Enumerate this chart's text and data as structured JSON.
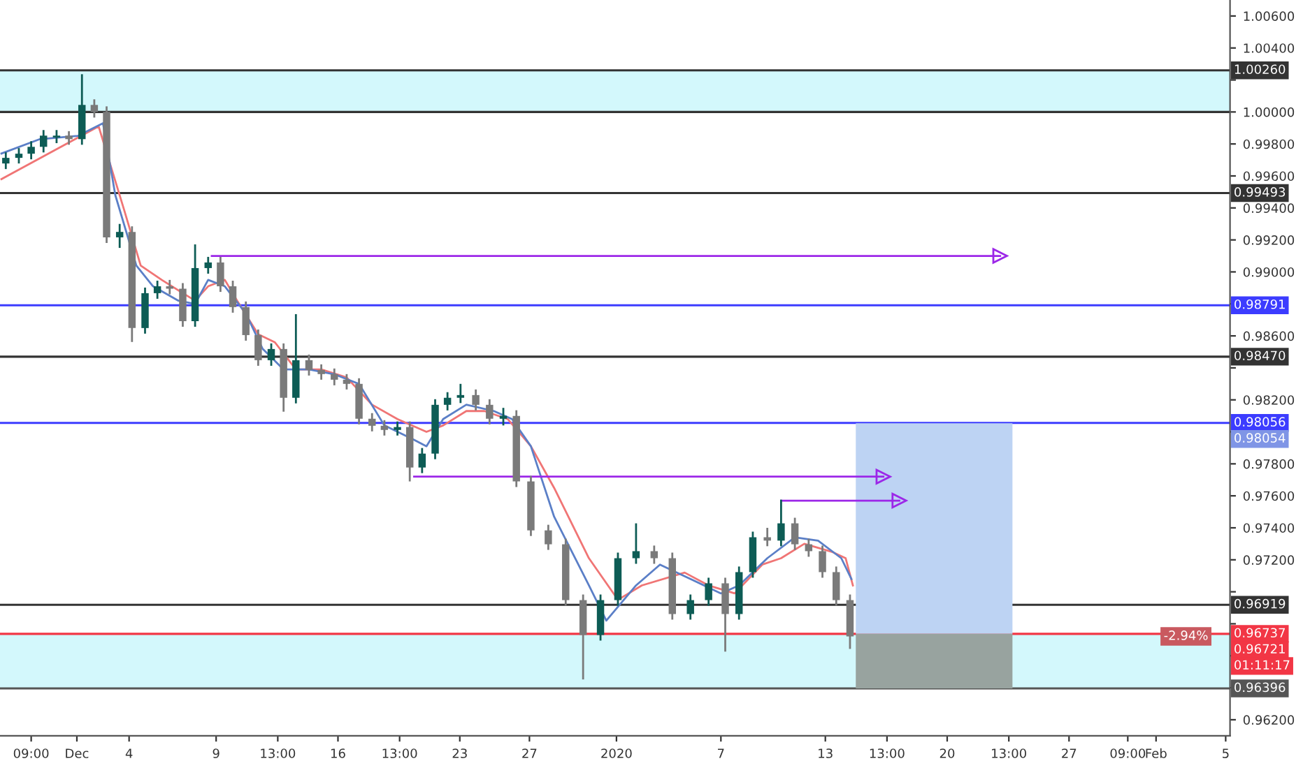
{
  "chart_data": {
    "type": "candlestick",
    "x": [
      "2019-11-26T22:00",
      "2019-11-27T16:00",
      "2019-11-28T09:00",
      "2019-11-29T02:00",
      "2019-11-29T20:00",
      "2019-11-30T13:00",
      "2019-12-01T07:00",
      "2019-12-02T00:00",
      "2019-12-02T17:00",
      "2019-12-03T11:00",
      "2019-12-04T04:00",
      "2019-12-04T22:00",
      "2019-12-05T15:00",
      "2019-12-06T08:00",
      "2019-12-07T02:00",
      "2019-12-07T19:00",
      "2019-12-08T13:00",
      "2019-12-09T06:00",
      "2019-12-09T23:00",
      "2019-12-10T17:00",
      "2019-12-11T10:00",
      "2019-12-12T04:00",
      "2019-12-12T21:00",
      "2019-12-13T14:00",
      "2019-12-14T08:00",
      "2019-12-15T01:00",
      "2019-12-15T19:00",
      "2019-12-16T12:00",
      "2019-12-17T05:00",
      "2019-12-17T23:00",
      "2019-12-18T16:00",
      "2019-12-19T10:00",
      "2019-12-20T03:00",
      "2019-12-20T20:00",
      "2019-12-21T14:00",
      "2019-12-22T07:00",
      "2019-12-23T01:00",
      "2019-12-23T22:00",
      "2019-12-24T17:00",
      "2019-12-25T12:00",
      "2019-12-26T06:00",
      "2019-12-27T02:00",
      "2019-12-28T02:00",
      "2019-12-29T02:00",
      "2019-12-30T02:00",
      "2019-12-31T02:00",
      "2020-01-01T02:00",
      "2020-01-02T03:00",
      "2020-01-03T04:00",
      "2020-01-04T05:00",
      "2020-01-05T06:00",
      "2020-01-06T07:00",
      "2020-01-07T06:00",
      "2020-01-08T01:00",
      "2020-01-08T20:00",
      "2020-01-09T16:00",
      "2020-01-10T11:00",
      "2020-01-11T06:00",
      "2020-01-12T01:00",
      "2020-01-12T20:00",
      "2020-01-13T15:00",
      "2020-01-14T10:00"
    ],
    "ohlc": [
      [
        0.99678,
        0.99748,
        0.99643,
        0.99713
      ],
      [
        0.99713,
        0.99774,
        0.99678,
        0.99739
      ],
      [
        0.99739,
        0.99817,
        0.99704,
        0.99782
      ],
      [
        0.99782,
        0.99887,
        0.99747,
        0.99852
      ],
      [
        0.9984,
        0.99887,
        0.99805,
        0.99852
      ],
      [
        0.99852,
        0.9988,
        0.99795,
        0.9983
      ],
      [
        0.9983,
        1.00236,
        0.99795,
        1.00044
      ],
      [
        1.00044,
        1.00079,
        0.99965,
        1.0
      ],
      [
        1.0,
        1.00035,
        0.99181,
        0.99216
      ],
      [
        0.99216,
        0.993,
        0.9915,
        0.9925
      ],
      [
        0.9925,
        0.99285,
        0.98562,
        0.98649
      ],
      [
        0.98649,
        0.98902,
        0.98614,
        0.98867
      ],
      [
        0.98867,
        0.98945,
        0.98832,
        0.9891
      ],
      [
        0.9891,
        0.9895,
        0.9886,
        0.98895
      ],
      [
        0.98895,
        0.9893,
        0.98657,
        0.98692
      ],
      [
        0.98692,
        0.99172,
        0.98657,
        0.99024
      ],
      [
        0.99024,
        0.99094,
        0.98989,
        0.99059
      ],
      [
        0.99059,
        0.99094,
        0.98875,
        0.9891
      ],
      [
        0.9891,
        0.98945,
        0.98745,
        0.9878
      ],
      [
        0.9878,
        0.98815,
        0.9857,
        0.98605
      ],
      [
        0.98605,
        0.9864,
        0.98413,
        0.98448
      ],
      [
        0.98448,
        0.98553,
        0.98413,
        0.98518
      ],
      [
        0.98518,
        0.98553,
        0.98126,
        0.98213
      ],
      [
        0.98213,
        0.98736,
        0.98178,
        0.98448
      ],
      [
        0.98448,
        0.98483,
        0.98352,
        0.98387
      ],
      [
        0.98387,
        0.98422,
        0.98326,
        0.98361
      ],
      [
        0.98361,
        0.98396,
        0.98291,
        0.98326
      ],
      [
        0.98326,
        0.98361,
        0.98265,
        0.983
      ],
      [
        0.983,
        0.98335,
        0.98047,
        0.98082
      ],
      [
        0.98082,
        0.98117,
        0.98003,
        0.98038
      ],
      [
        0.98038,
        0.98073,
        0.97977,
        0.98012
      ],
      [
        0.98012,
        0.98065,
        0.97977,
        0.9803
      ],
      [
        0.9803,
        0.98065,
        0.9769,
        0.97777
      ],
      [
        0.97777,
        0.97899,
        0.97742,
        0.97864
      ],
      [
        0.97864,
        0.98204,
        0.97829,
        0.98169
      ],
      [
        0.98169,
        0.98248,
        0.98134,
        0.98213
      ],
      [
        0.98213,
        0.983,
        0.9818,
        0.9823
      ],
      [
        0.9823,
        0.98265,
        0.98134,
        0.98169
      ],
      [
        0.98169,
        0.98204,
        0.98047,
        0.98082
      ],
      [
        0.98082,
        0.9815,
        0.9804,
        0.981
      ],
      [
        0.981,
        0.98135,
        0.97655,
        0.9769
      ],
      [
        0.9769,
        0.97725,
        0.97349,
        0.97384
      ],
      [
        0.97384,
        0.97419,
        0.97262,
        0.97297
      ],
      [
        0.97297,
        0.97332,
        0.96913,
        0.96948
      ],
      [
        0.96948,
        0.96983,
        0.96452,
        0.9673
      ],
      [
        0.9673,
        0.96983,
        0.96695,
        0.96948
      ],
      [
        0.96948,
        0.97245,
        0.96913,
        0.9721
      ],
      [
        0.9721,
        0.97428,
        0.97175,
        0.97254
      ],
      [
        0.97254,
        0.97289,
        0.97175,
        0.9721
      ],
      [
        0.9721,
        0.97245,
        0.96826,
        0.96861
      ],
      [
        0.96861,
        0.96983,
        0.96826,
        0.96948
      ],
      [
        0.96948,
        0.97088,
        0.96913,
        0.97053
      ],
      [
        0.97053,
        0.97088,
        0.96626,
        0.96861
      ],
      [
        0.96861,
        0.97158,
        0.96826,
        0.97123
      ],
      [
        0.97123,
        0.97376,
        0.97088,
        0.97341
      ],
      [
        0.97341,
        0.974,
        0.97285,
        0.9732
      ],
      [
        0.9732,
        0.97576,
        0.97285,
        0.97428
      ],
      [
        0.97428,
        0.97463,
        0.97262,
        0.97297
      ],
      [
        0.97297,
        0.97332,
        0.97219,
        0.97254
      ],
      [
        0.97254,
        0.97289,
        0.97088,
        0.97123
      ],
      [
        0.97123,
        0.97158,
        0.96913,
        0.96948
      ],
      [
        0.96948,
        0.96983,
        0.96643,
        0.96721
      ]
    ],
    "colors": [
      "#0d5c55",
      "#0d5c55",
      "#0d5c55",
      "#0d5c55",
      "#0d5c55",
      "#7a7a7a",
      "#0d5c55",
      "#7a7a7a",
      "#7a7a7a",
      "#0d5c55",
      "#7a7a7a",
      "#0d5c55",
      "#0d5c55",
      "#7a7a7a",
      "#7a7a7a",
      "#0d5c55",
      "#0d5c55",
      "#7a7a7a",
      "#7a7a7a",
      "#7a7a7a",
      "#7a7a7a",
      "#0d5c55",
      "#7a7a7a",
      "#0d5c55",
      "#7a7a7a",
      "#7a7a7a",
      "#7a7a7a",
      "#7a7a7a",
      "#7a7a7a",
      "#7a7a7a",
      "#7a7a7a",
      "#0d5c55",
      "#7a7a7a",
      "#0d5c55",
      "#0d5c55",
      "#0d5c55",
      "#0d5c55",
      "#7a7a7a",
      "#7a7a7a",
      "#0d5c55",
      "#7a7a7a",
      "#7a7a7a",
      "#7a7a7a",
      "#7a7a7a",
      "#7a7a7a",
      "#0d5c55",
      "#0d5c55",
      "#0d5c55",
      "#7a7a7a",
      "#7a7a7a",
      "#0d5c55",
      "#0d5c55",
      "#7a7a7a",
      "#0d5c55",
      "#0d5c55",
      "#7a7a7a",
      "#0d5c55",
      "#7a7a7a",
      "#7a7a7a",
      "#7a7a7a",
      "#7a7a7a",
      "#7a7a7a"
    ],
    "series": [
      {
        "type": "line",
        "color": "#f07575",
        "x": [
          "2019-11-26T16:00",
          "2019-12-02T06:00",
          "2019-12-03T17:00",
          "2019-12-04T16:00",
          "2019-12-05T21:00",
          "2019-12-07T19:00",
          "2019-12-08T13:00",
          "2019-12-09T12:00",
          "2019-12-10T05:00",
          "2019-12-11T10:00",
          "2019-12-12T09:00",
          "2019-12-13T14:00",
          "2019-12-15T01:00",
          "2019-12-16T12:00",
          "2019-12-17T23:00",
          "2019-12-19T10:00",
          "2019-12-21T02:00",
          "2019-12-22T01:00",
          "2019-12-23T09:00",
          "2019-12-24T10:00",
          "2019-12-25T18:00",
          "2019-12-27T02:00",
          "2019-12-28T10:00",
          "2019-12-30T10:00",
          "2020-01-01T02:00",
          "2020-01-02T11:00",
          "2020-01-04T22:00",
          "2020-01-06T07:00",
          "2020-01-07T19:00",
          "2020-01-09T09:00",
          "2020-01-10T11:00",
          "2020-01-11T19:00",
          "2020-01-13T09:00",
          "2020-01-14T04:00",
          "2020-01-14T14:00"
        ],
        "values": [
          0.9958,
          0.9991,
          0.9939,
          0.9904,
          0.9895,
          0.9882,
          0.9891,
          0.9895,
          0.9882,
          0.9861,
          0.9856,
          0.9839,
          0.9839,
          0.9834,
          0.9817,
          0.9808,
          0.98,
          0.9804,
          0.9813,
          0.9813,
          0.9808,
          0.9791,
          0.9765,
          0.9721,
          0.9695,
          0.9704,
          0.9712,
          0.9704,
          0.9699,
          0.9717,
          0.9721,
          0.973,
          0.9725,
          0.9721,
          0.9704
        ]
      },
      {
        "type": "line",
        "color": "#5b7fc7",
        "x": [
          "2019-11-26T16:00",
          "2019-11-28T21:00",
          "2019-12-01T01:00",
          "2019-12-02T12:00",
          "2019-12-03T05:00",
          "2019-12-04T10:00",
          "2019-12-05T09:00",
          "2019-12-06T20:00",
          "2019-12-07T19:00",
          "2019-12-08T13:00",
          "2019-12-09T12:00",
          "2019-12-10T17:00",
          "2019-12-11T16:00",
          "2019-12-12T21:00",
          "2019-12-14T08:00",
          "2019-12-15T19:00",
          "2019-12-17T05:00",
          "2019-12-18T16:00",
          "2019-12-20T09:00",
          "2019-12-21T02:00",
          "2019-12-22T01:00",
          "2019-12-23T09:00",
          "2019-12-24T23:00",
          "2019-12-26T00:00",
          "2019-12-27T02:00",
          "2019-12-28T10:00",
          "2019-12-30T10:00",
          "2019-12-31T10:00",
          "2020-01-02T03:00",
          "2020-01-03T12:00",
          "2020-01-05T06:00",
          "2020-01-07T00:00",
          "2020-01-08T01:00",
          "2020-01-09T16:00",
          "2020-01-11T06:00",
          "2020-01-12T14:00",
          "2020-01-13T22:00",
          "2020-01-14T12:00"
        ],
        "values": [
          0.9974,
          0.9983,
          0.9985,
          0.9993,
          0.9948,
          0.9904,
          0.9891,
          0.9882,
          0.988,
          0.9895,
          0.9891,
          0.9874,
          0.9852,
          0.9839,
          0.9839,
          0.9836,
          0.983,
          0.9804,
          0.9795,
          0.9791,
          0.9808,
          0.9817,
          0.9813,
          0.9808,
          0.9791,
          0.9747,
          0.9704,
          0.9682,
          0.9704,
          0.9717,
          0.9708,
          0.9699,
          0.9704,
          0.9721,
          0.9734,
          0.9732,
          0.9721,
          0.9708
        ]
      },
      {
        "type": "line",
        "color": "#9c27e8",
        "marker": "triangle",
        "x": [
          "2019-12-08T18:00",
          "2020-01-23T01:00"
        ],
        "values": [
          0.991,
          0.991
        ]
      },
      {
        "type": "line",
        "color": "#9c27e8",
        "marker": "triangle",
        "x": [
          "2019-12-20T09:00",
          "2020-01-16T08:00"
        ],
        "values": [
          0.9772,
          0.9772
        ]
      },
      {
        "type": "line",
        "color": "#9c27e8",
        "marker": "triangle",
        "x": [
          "2020-01-10T11:00",
          "2020-01-17T06:00"
        ],
        "values": [
          0.9757,
          0.9757
        ]
      },
      {
        "type": "area",
        "color": "#bdd3f3",
        "x": [
          "2020-01-14T18:00",
          "2020-01-14T18:00",
          "2020-01-23T18:00",
          "2020-01-23T18:00"
        ],
        "values": [
          0.96737,
          0.98054,
          0.98054,
          0.96737
        ]
      },
      {
        "type": "area",
        "color": "#98a39f",
        "x": [
          "2020-01-14T18:00",
          "2020-01-14T18:00",
          "2020-01-23T18:00",
          "2020-01-23T18:00"
        ],
        "values": [
          0.96396,
          0.96737,
          0.96737,
          0.96396
        ]
      }
    ],
    "bands": [
      {
        "axis": "y",
        "from": 1.0,
        "to": 1.0026,
        "color": "#d3f8fc"
      },
      {
        "axis": "y",
        "from": 0.96396,
        "to": 0.96737,
        "color": "#d3f8fc"
      }
    ],
    "ref_lines": [
      {
        "axis": "y",
        "value": 1.0026,
        "label": "1.00260",
        "color": "#333333"
      },
      {
        "axis": "y",
        "value": 1.0,
        "label": null,
        "color": "#333333"
      },
      {
        "axis": "y",
        "value": 0.99493,
        "label": "0.99493",
        "color": "#333333"
      },
      {
        "axis": "y",
        "value": 0.98791,
        "label": "0.98791",
        "color": "#3c3cff"
      },
      {
        "axis": "y",
        "value": 0.9847,
        "label": "0.98470",
        "color": "#333333"
      },
      {
        "axis": "y",
        "value": 0.98056,
        "label": "0.98056",
        "color": "#3c3cff"
      },
      {
        "axis": "y",
        "value": 0.96919,
        "label": "0.96919",
        "color": "#333333"
      },
      {
        "axis": "y",
        "value": 0.96737,
        "label": "0.96737",
        "color": "#f23645"
      },
      {
        "axis": "y",
        "value": 0.96396,
        "label": "0.96396",
        "color": "#555555"
      }
    ],
    "annotations": [
      {
        "text": "0.98054",
        "y": 0.98054
      },
      {
        "text": "0.96721",
        "y": 0.96721
      },
      {
        "text": "-2.94%",
        "x": "2020-02-04T00:00",
        "y": 0.96721
      },
      "01:11:17"
    ],
    "xlim": [
      "2019-11-26T14:00",
      "2020-02-05T06:00"
    ],
    "ylim": [
      0.961,
      1.007
    ],
    "xticks": [
      {
        "value": "2019-11-28T09:00",
        "label": "09:00"
      },
      {
        "value": "2019-12-01",
        "label": "Dec"
      },
      {
        "value": "2019-12-04",
        "label": "4"
      },
      {
        "value": "2019-12-09",
        "label": "9"
      },
      {
        "value": "2019-12-12T13:00",
        "label": "13:00"
      },
      {
        "value": "2019-12-16",
        "label": "16"
      },
      {
        "value": "2019-12-19T13:00",
        "label": "13:00"
      },
      {
        "value": "2019-12-23",
        "label": "23"
      },
      {
        "value": "2019-12-27",
        "label": "27"
      },
      {
        "value": "2020-01-01",
        "label": "2020"
      },
      {
        "value": "2020-01-07",
        "label": "7"
      },
      {
        "value": "2020-01-13",
        "label": "13"
      },
      {
        "value": "2020-01-16T13:00",
        "label": "13:00"
      },
      {
        "value": "2020-01-20",
        "label": "20"
      },
      {
        "value": "2020-01-23T13:00",
        "label": "13:00"
      },
      {
        "value": "2020-01-27",
        "label": "27"
      },
      {
        "value": "2020-01-30T09:00",
        "label": "09:00"
      },
      {
        "value": "2020-02-01",
        "label": "Feb"
      },
      {
        "value": "2020-02-05",
        "label": "5"
      }
    ],
    "yticks": [
      {
        "value": 0.962,
        "label": "0.96200"
      },
      {
        "value": 0.964,
        "label": null
      },
      {
        "value": 0.966,
        "label": null
      },
      {
        "value": 0.968,
        "label": null
      },
      {
        "value": 0.97,
        "label": null
      },
      {
        "value": 0.972,
        "label": "0.97200"
      },
      {
        "value": 0.974,
        "label": "0.97400"
      },
      {
        "value": 0.976,
        "label": "0.97600"
      },
      {
        "value": 0.978,
        "label": "0.97800"
      },
      {
        "value": 0.98,
        "label": null
      },
      {
        "value": 0.982,
        "label": "0.98200"
      },
      {
        "value": 0.984,
        "label": null
      },
      {
        "value": 0.986,
        "label": "0.98600"
      },
      {
        "value": 0.988,
        "label": null
      },
      {
        "value": 0.99,
        "label": "0.99000"
      },
      {
        "value": 0.992,
        "label": "0.99200"
      },
      {
        "value": 0.994,
        "label": "0.99400"
      },
      {
        "value": 0.996,
        "label": "0.99600"
      },
      {
        "value": 0.998,
        "label": "0.99800"
      },
      {
        "value": 1.0,
        "label": "1.00000"
      },
      {
        "value": 1.002,
        "label": null
      },
      {
        "value": 1.004,
        "label": "1.00400"
      },
      {
        "value": 1.006,
        "label": "1.00600"
      }
    ],
    "grid": false
  }
}
